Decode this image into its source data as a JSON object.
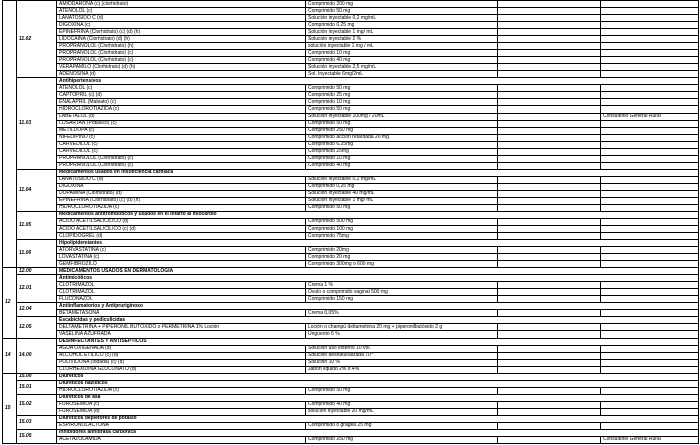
{
  "formulary": {
    "note_color": "#000000",
    "grid_color": "#000000",
    "chapters": [
      {
        "num": "",
        "sections": [
          {
            "code": "11.02",
            "header": "",
            "rows": [
              {
                "name": "AMIODARONA (c) (clorhidrato)",
                "dose": "Comprimido 200 mg",
                "note": ""
              },
              {
                "name": "ATENOLOL (c)",
                "dose": "Comprimido 50 mg",
                "note": ""
              },
              {
                "name": "LANATOSIDO C (d)",
                "dose": "Solución inyectable 0,2 mg/mL",
                "note": ""
              },
              {
                "name": "DIGOXINA (c)",
                "dose": "Comprimido  0,25 mg",
                "note": ""
              },
              {
                "name": "EPINEFRINA (Clorhidrato) (c) (d) (h)",
                "dose": "Solución inyectable 1 mg/ mL",
                "note": ""
              },
              {
                "name": "LIDOCAINA (Clorhidrato) (d) (h)",
                "dose": "Solución inyectable 2 %",
                "note": ""
              },
              {
                "name": "PROPRANOLOL (Clorhidrato) (h)",
                "dose": "solución inyectable 1 mg / mL",
                "note": ""
              },
              {
                "name": "PROPRANOLOL (Clorhidrato) (c)",
                "dose": "Comprimido 10 mg",
                "note": ""
              },
              {
                "name": "PROPRANOLOL (Clorhidrato) (c)",
                "dose": "Comprimido 40 mg",
                "note": ""
              },
              {
                "name": "VERAPAMILO (Clorhidrato) (d) (h)",
                "dose": "Solución inyectable 2,5 mg/mL",
                "note": ""
              },
              {
                "name": "ADENOSINA (d)",
                "dose": "Sol. Inyectable 6mg/2mL",
                "note": ""
              }
            ]
          },
          {
            "code": "11.03",
            "header": "Antihipertensivos",
            "rows": [
              {
                "name": "ATENOLOL (c)",
                "dose": "Comprimido 50 mg",
                "note": ""
              },
              {
                "name": "CAPTOPRIL (c) (d)",
                "dose": "Comprimido 25 mg",
                "note": ""
              },
              {
                "name": "ENALAPRIL (Maleato) (c)",
                "dose": "Comprimido 10 mg",
                "note": ""
              },
              {
                "name": "HIDROCLOROTIAZIDA (c)",
                "dose": "Comprimido 50 mg",
                "note": ""
              },
              {
                "name": "LABETALOL (d)",
                "dose": "Solución inyectable 100mg / 20mL",
                "note": "Consultorio General Rural"
              },
              {
                "name": "LOSARTAN  (Potásico) (c)",
                "dose": "Comprimido 50 mg",
                "note": ""
              },
              {
                "name": "METILDOPA (c)",
                "dose": "Comprimido 250 mg",
                "note": ""
              },
              {
                "name": "NIFEDIPINO (c)",
                "dose": "Comprimido acción retardada 20 mg",
                "note": ""
              },
              {
                "name": "CARVEDILOL (c)",
                "dose": "Comprimido 6,25mg",
                "note": ""
              },
              {
                "name": "CARVEDILOL (c)",
                "dose": "Comprimido 25mg",
                "note": ""
              },
              {
                "name": "PROPRANOLOL (Clorhidrato) (c)",
                "dose": "Comprimido 10 mg",
                "note": ""
              },
              {
                "name": "PROPRANOLOL (Clorhidrato) (c)",
                "dose": "Comprimido 40 mg",
                "note": ""
              }
            ]
          },
          {
            "code": "11.04",
            "header": "Medicamentos usados en insuficiencia cardiaca",
            "rows": [
              {
                "name": "LANATOSIDO C (d)",
                "dose": "Solución inyectable 0,2 mg/mL",
                "note": ""
              },
              {
                "name": "DIGOXINA",
                "dose": "Comprimido 0,25 mg",
                "note": ""
              },
              {
                "name": "DOPAMINA (Clorhidrato) (d)",
                "dose": "Solución inyectable 40 mg/mL",
                "note": ""
              },
              {
                "name": "EPINEFRINA (Clorhidrato) (c) (d) (h)",
                "dose": "Solución inyectable 1 mg/ mL",
                "note": ""
              },
              {
                "name": "HIDROCLOROTIAZIDA (c)",
                "dose": "Comprimido 50 mg",
                "note": ""
              }
            ]
          },
          {
            "code": "11.05",
            "header": "Medicamentos antitrombóticos y usados en el infarto al miocardio",
            "rows": [
              {
                "name": "ACIDO ACETILSALICILICO (d)",
                "dose": "Comprimido 500 mg",
                "note": ""
              },
              {
                "name": "ACIDO ACETILSALICILICO (c) (d)",
                "dose": "Comprimido 100 mg",
                "note": ""
              },
              {
                "name": "CLOPIDOGREL (d)",
                "dose": "Comprimido 75mg",
                "note": ""
              }
            ]
          },
          {
            "code": "11.06",
            "header": "Hipolipidemiantes",
            "rows": [
              {
                "name": "ATORVASTATINA (c)",
                "dose": "Comprimido 20mg",
                "note": ""
              },
              {
                "name": "LOVASTATINA (c)",
                "dose": "Comprimido 20 mg",
                "note": ""
              },
              {
                "name": "GEMFIBROZILO",
                "dose": "Comprimido 300mg o 600 mg",
                "note": ""
              }
            ]
          }
        ]
      },
      {
        "num": "12",
        "sections": [
          {
            "code": "12.00",
            "header": "MEDICAMENTOS USADOS EN DERMATOLOGIA",
            "rows": []
          },
          {
            "code": "12.01",
            "header": "Antimicóticos",
            "rows": [
              {
                "name": "CLOTRIMAZOL",
                "dose": "Crema 1 %",
                "note": ""
              },
              {
                "name": "CLOTRIMAZOL",
                "dose": "Óvulo o comprimido vaginal 500 mg",
                "note": ""
              },
              {
                "name": "FLUCONAZOL",
                "dose": "Comprimido 150 mg",
                "note": ""
              }
            ]
          },
          {
            "code": "12.04",
            "header": "Antiinflamatorios y Antipruriginoso",
            "rows": [
              {
                "name": "BETAMETASONA",
                "dose": "Crema 0,05%",
                "note": ""
              }
            ]
          },
          {
            "code": "12.05",
            "header": "Escabicidas y pediculicidas",
            "rows": [
              {
                "name": "DELTAMETRINA + PIPERONIL BUTÓXIDO o PERMETRINA 1% Loción",
                "dose": "Loción o champú deltametrina 20 mg + piperonilbutóxido 2 g",
                "note": ""
              },
              {
                "name": "VASELINA AZUFRADA",
                "dose": "Ungüento 6 %",
                "note": ""
              }
            ]
          }
        ]
      },
      {
        "num": "14",
        "sections": [
          {
            "code": "14.00",
            "header": "DESINFECTANTES Y ANTISEPTICOS",
            "rows": [
              {
                "name": "AGUA OXIGENADA (d)",
                "dose": "Solución uso externo 10 vol.",
                "note": ""
              },
              {
                "name": "ALCOHOL ETILICO (c) (d)",
                "dose": "Solución desnaturalizada 70°",
                "note": ""
              },
              {
                "name": "POLIVIDONA (Iodada) (c) (d)",
                "dose": "Solución  10 %",
                "note": ""
              },
              {
                "name": "CLORHEXIDINA GLUCONATO (d)",
                "dose": "Jabón líquido 2% o 4%",
                "note": ""
              }
            ]
          }
        ]
      },
      {
        "num": "15",
        "sections": [
          {
            "code": "15.00",
            "header": "Diuréticos",
            "rows": []
          },
          {
            "code": "15.01",
            "header": "Diuréticos tiazídicos",
            "rows": [
              {
                "name": "HIDROCLOROTIAZIDA (c)",
                "dose": "Comprimido 50 mg",
                "note": ""
              }
            ]
          },
          {
            "code": "15.02",
            "header": "Diuréticos de asa",
            "rows": [
              {
                "name": "FUROSEMIDA (c)",
                "dose": "Comprimido 40 mg",
                "note": ""
              },
              {
                "name": "FUROSEMIDA (d)",
                "dose": "solución inyectable 20 mg/mL",
                "note": ""
              }
            ]
          },
          {
            "code": "15.03",
            "header": "Diuréticos depletores de potasio",
            "rows": [
              {
                "name": "ESPIRONOLACTONA",
                "dose": "Comprimido o gragea 25 mg",
                "note": ""
              }
            ]
          },
          {
            "code": "15.05",
            "header": "Inhibidores anhídrasa carbónica",
            "rows": [
              {
                "name": "ACETAZOLAMIDA",
                "dose": "Comprimido 250 mg",
                "note": "Consultorio General Rural"
              }
            ]
          }
        ]
      }
    ]
  }
}
